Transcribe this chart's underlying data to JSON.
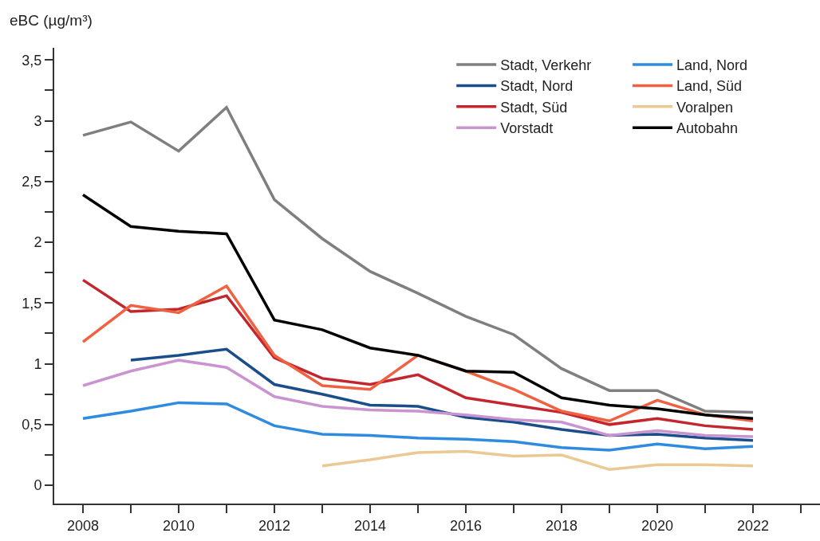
{
  "chart_data": {
    "type": "line",
    "ylabel": "eBC (µg/m³)",
    "x": [
      2008,
      2009,
      2010,
      2011,
      2012,
      2013,
      2014,
      2015,
      2016,
      2017,
      2018,
      2019,
      2020,
      2021,
      2022
    ],
    "series": [
      {
        "name": "Stadt, Verkehr",
        "color": "#7f7f7f",
        "values": [
          2.88,
          2.99,
          2.75,
          3.11,
          2.35,
          2.03,
          1.76,
          1.58,
          1.39,
          1.24,
          0.96,
          0.78,
          0.78,
          0.61,
          0.6
        ]
      },
      {
        "name": "Stadt, Nord",
        "color": "#1a4e8a",
        "values": [
          null,
          1.03,
          1.07,
          1.12,
          0.83,
          0.75,
          0.66,
          0.65,
          0.56,
          0.52,
          0.46,
          0.41,
          0.42,
          0.39,
          0.37
        ]
      },
      {
        "name": "Stadt, Süd",
        "color": "#c4262e",
        "values": [
          1.69,
          1.43,
          1.45,
          1.56,
          1.05,
          0.88,
          0.83,
          0.91,
          0.72,
          0.66,
          0.6,
          0.5,
          0.55,
          0.49,
          0.46
        ]
      },
      {
        "name": "Vorstadt",
        "color": "#c994d0",
        "values": [
          0.82,
          0.94,
          1.03,
          0.97,
          0.73,
          0.65,
          0.62,
          0.61,
          0.58,
          0.54,
          0.52,
          0.41,
          0.45,
          0.41,
          0.4
        ]
      },
      {
        "name": "Land, Nord",
        "color": "#2f8be0",
        "values": [
          0.55,
          0.61,
          0.68,
          0.67,
          0.49,
          0.42,
          0.41,
          0.39,
          0.38,
          0.36,
          0.31,
          0.29,
          0.34,
          0.3,
          0.32
        ]
      },
      {
        "name": "Land, Süd",
        "color": "#ef6140",
        "values": [
          1.18,
          1.48,
          1.42,
          1.64,
          1.07,
          0.82,
          0.79,
          1.07,
          0.94,
          0.79,
          0.61,
          0.53,
          0.7,
          0.58,
          0.53
        ]
      },
      {
        "name": "Voralpen",
        "color": "#ebc995",
        "values": [
          null,
          null,
          null,
          null,
          null,
          0.16,
          0.21,
          0.27,
          0.28,
          0.24,
          0.25,
          0.13,
          0.17,
          0.17,
          0.16
        ]
      },
      {
        "name": "Autobahn",
        "color": "#000000",
        "values": [
          2.39,
          2.13,
          2.09,
          2.07,
          1.36,
          1.28,
          1.13,
          1.07,
          0.94,
          0.93,
          0.72,
          0.66,
          0.63,
          0.58,
          0.55
        ]
      }
    ],
    "xlim": [
      2007.4,
      2023.4
    ],
    "xticks": [
      2008,
      {
        "value": 2009,
        "label": null
      },
      2010,
      {
        "value": 2011,
        "label": null
      },
      2012,
      {
        "value": 2013,
        "label": null
      },
      2014,
      {
        "value": 2015,
        "label": null
      },
      2016,
      {
        "value": 2017,
        "label": null
      },
      2018,
      {
        "value": 2019,
        "label": null
      },
      2020,
      {
        "value": 2021,
        "label": null
      },
      2022,
      {
        "value": 2023,
        "label": null
      }
    ],
    "ylim": [
      -0.15,
      3.6
    ],
    "yticks": [
      0,
      {
        "value": 0.25,
        "label": null
      },
      {
        "value": 0.5,
        "label": "0,5"
      },
      {
        "value": 0.75,
        "label": null
      },
      1,
      {
        "value": 1.25,
        "label": null
      },
      {
        "value": 1.5,
        "label": "1,5"
      },
      {
        "value": 1.75,
        "label": null
      },
      2,
      {
        "value": 2.25,
        "label": null
      },
      {
        "value": 2.5,
        "label": "2,5"
      },
      {
        "value": 2.75,
        "label": null
      },
      3,
      {
        "value": 3.25,
        "label": null
      },
      {
        "value": 3.5,
        "label": "3,5"
      }
    ],
    "grid": false,
    "legend": "top right",
    "marker": "none",
    "line_style": "solid"
  }
}
